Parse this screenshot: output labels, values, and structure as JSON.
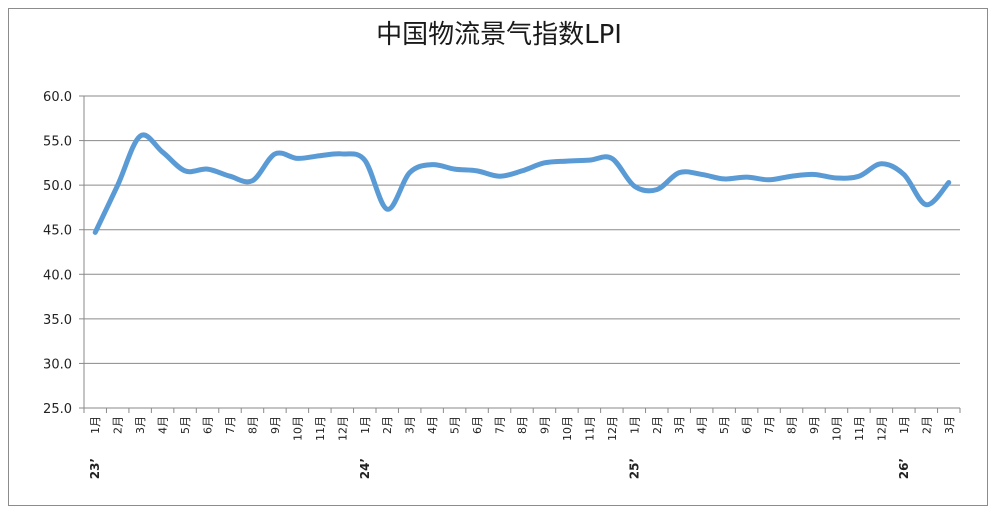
{
  "chart_data": {
    "type": "line",
    "title": "中国物流景气指数LPI",
    "xlabel": "",
    "ylabel": "",
    "ylim": [
      25.0,
      60.0
    ],
    "yticks": [
      "25.0",
      "30.0",
      "35.0",
      "40.0",
      "45.0",
      "50.0",
      "55.0",
      "60.0"
    ],
    "grid": true,
    "legend": "none",
    "line_color": "#5b9bd5",
    "categories": [
      "1月",
      "2月",
      "3月",
      "4月",
      "5月",
      "6月",
      "7月",
      "8月",
      "9月",
      "10月",
      "11月",
      "12月",
      "1月",
      "2月",
      "3月",
      "4月",
      "5月",
      "6月",
      "7月",
      "8月",
      "9月",
      "10月",
      "11月",
      "12月",
      "1月",
      "2月",
      "3月",
      "4月",
      "5月",
      "6月",
      "7月",
      "8月",
      "9月",
      "10月",
      "11月",
      "12月",
      "1月",
      "2月",
      "3月"
    ],
    "year_labels": [
      {
        "label": "23’",
        "category_index": 0
      },
      {
        "label": "24’",
        "category_index": 12
      },
      {
        "label": "25’",
        "category_index": 24
      },
      {
        "label": "26’",
        "category_index": 36
      }
    ],
    "series": [
      {
        "values": [
          44.7,
          50.0,
          55.5,
          53.7,
          51.6,
          51.8,
          51.0,
          50.5,
          53.5,
          53.0,
          53.3,
          53.5,
          52.8,
          47.3,
          51.4,
          52.3,
          51.8,
          51.6,
          51.0,
          51.6,
          52.5,
          52.7,
          52.8,
          53.0,
          49.9,
          49.5,
          51.4,
          51.2,
          50.7,
          50.9,
          50.6,
          51.0,
          51.2,
          50.8,
          51.0,
          52.4,
          51.2,
          47.8,
          50.3
        ]
      }
    ]
  }
}
